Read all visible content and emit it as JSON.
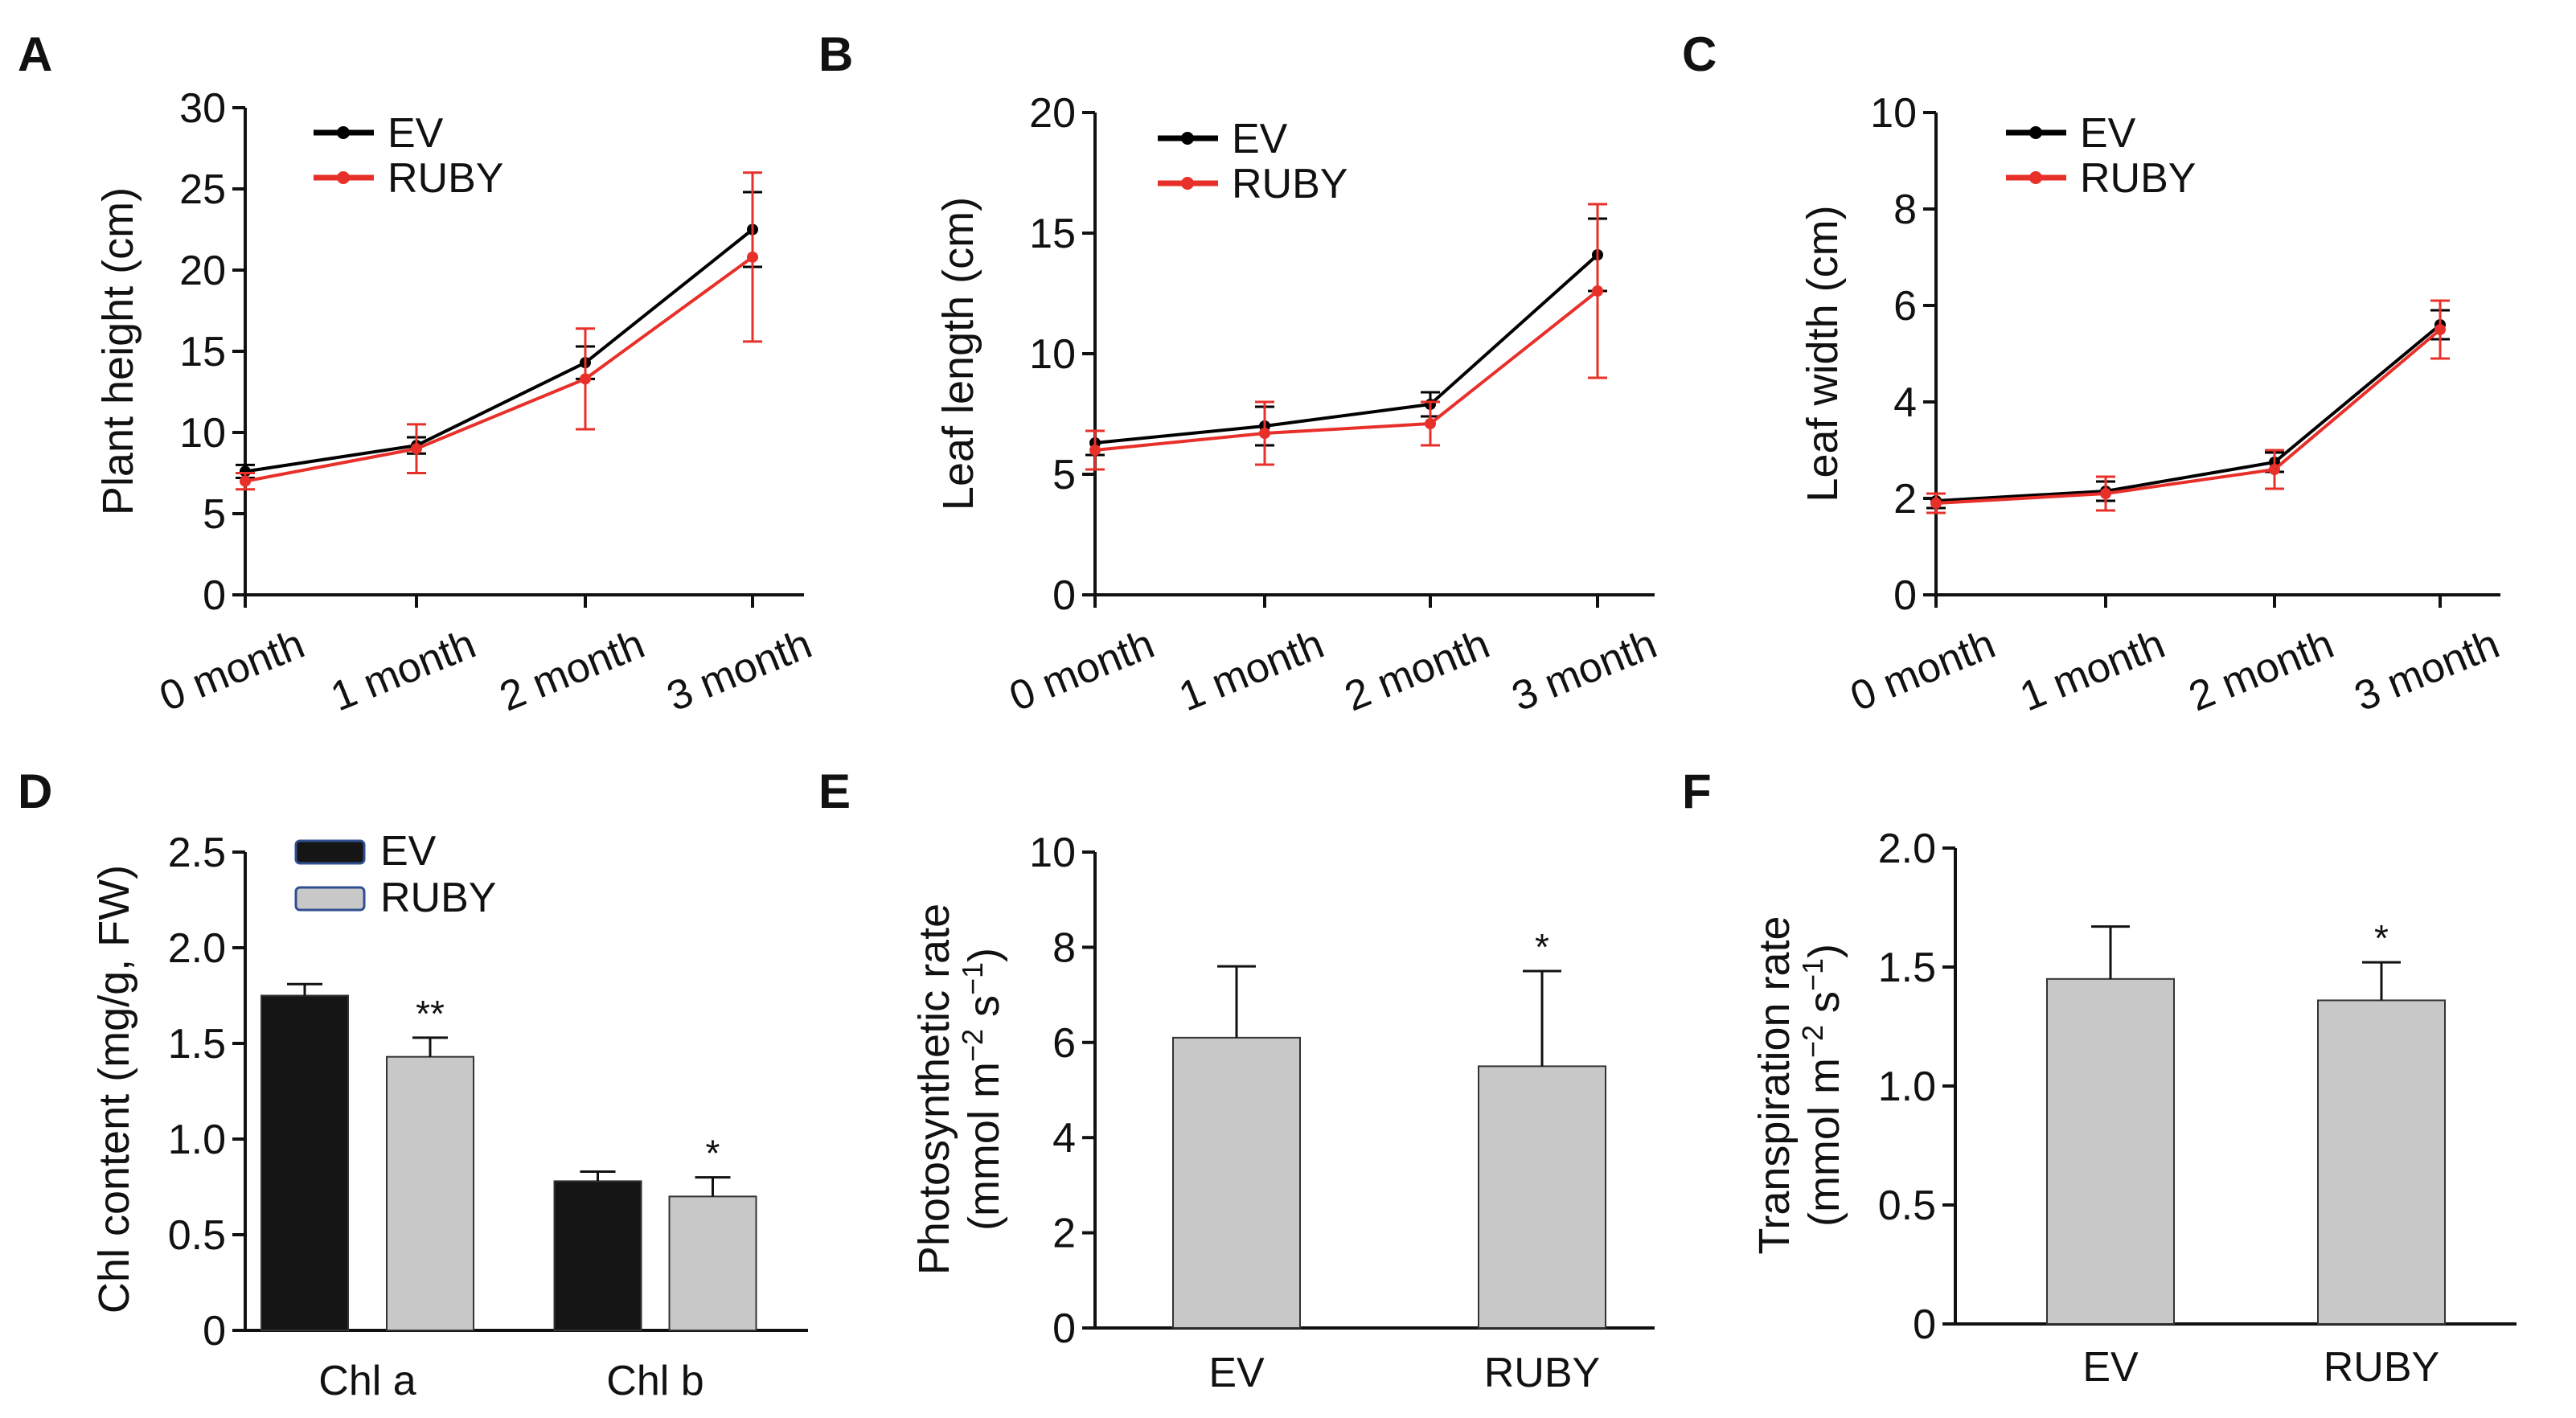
{
  "colors": {
    "ev_line": "#000000",
    "ruby_line": "#e8302a",
    "ev_bar": "#151515",
    "ruby_bar": "#c8c8c8",
    "bar_edge": "#333333"
  },
  "chart_data": [
    {
      "panel": "A",
      "type": "line",
      "ylabel": "Plant height (cm)",
      "ylim": [
        0,
        30
      ],
      "yticks": [
        "0",
        "5",
        "10",
        "15",
        "20",
        "25",
        "30"
      ],
      "x": [
        "0 month",
        "1 month",
        "2 month",
        "3 month"
      ],
      "legend": [
        "EV",
        "RUBY"
      ],
      "series": [
        {
          "name": "EV",
          "values": [
            7.6,
            9.2,
            14.3,
            22.5
          ],
          "errors": [
            0.4,
            0.5,
            1.0,
            2.3
          ]
        },
        {
          "name": "RUBY",
          "values": [
            7.0,
            9.0,
            13.3,
            20.8
          ],
          "errors": [
            0.5,
            1.5,
            3.1,
            5.2
          ]
        }
      ]
    },
    {
      "panel": "B",
      "type": "line",
      "ylabel": "Leaf length (cm)",
      "ylim": [
        0,
        20
      ],
      "yticks": [
        "0",
        "5",
        "10",
        "15",
        "20"
      ],
      "x": [
        "0 month",
        "1 month",
        "2 month",
        "3 month"
      ],
      "legend": [
        "EV",
        "RUBY"
      ],
      "series": [
        {
          "name": "EV",
          "values": [
            6.3,
            7.0,
            7.9,
            14.1
          ],
          "errors": [
            0.5,
            0.8,
            0.5,
            1.5
          ]
        },
        {
          "name": "RUBY",
          "values": [
            6.0,
            6.7,
            7.1,
            12.6
          ],
          "errors": [
            0.8,
            1.3,
            0.9,
            3.6
          ]
        }
      ]
    },
    {
      "panel": "C",
      "type": "line",
      "ylabel": "Leaf width (cm)",
      "ylim": [
        0,
        10
      ],
      "yticks": [
        "0",
        "2",
        "4",
        "6",
        "8",
        "10"
      ],
      "x": [
        "0 month",
        "1 month",
        "2 month",
        "3 month"
      ],
      "legend": [
        "EV",
        "RUBY"
      ],
      "series": [
        {
          "name": "EV",
          "values": [
            1.95,
            2.15,
            2.75,
            5.6
          ],
          "errors": [
            0.15,
            0.2,
            0.2,
            0.3
          ]
        },
        {
          "name": "RUBY",
          "values": [
            1.9,
            2.1,
            2.6,
            5.5
          ],
          "errors": [
            0.2,
            0.35,
            0.4,
            0.6
          ]
        }
      ]
    },
    {
      "panel": "D",
      "type": "bar",
      "ylabel": "Chl content (mg/g, FW)",
      "ylim": [
        0,
        2.5
      ],
      "yticks": [
        "0",
        "0.5",
        "1.0",
        "1.5",
        "2.0",
        "2.5"
      ],
      "categories": [
        "Chl a",
        "Chl b"
      ],
      "legend": [
        "EV",
        "RUBY"
      ],
      "series": [
        {
          "name": "EV",
          "values": [
            1.75,
            0.78
          ],
          "errors": [
            0.06,
            0.05
          ]
        },
        {
          "name": "RUBY",
          "values": [
            1.43,
            0.7
          ],
          "errors": [
            0.1,
            0.1
          ]
        }
      ],
      "annotations": [
        {
          "category": "Chl a",
          "text": "**"
        },
        {
          "category": "Chl b",
          "text": "*"
        }
      ]
    },
    {
      "panel": "E",
      "type": "bar",
      "ylabel": "Photosynthetic rate",
      "ylabel2_prefix": "(mmol m",
      "ylabel2_sup1": "−2",
      "ylabel2_mid": " s",
      "ylabel2_sup2": "−1",
      "ylabel2_suffix": ")",
      "ylim": [
        0,
        10
      ],
      "yticks": [
        "0",
        "2",
        "4",
        "6",
        "8",
        "10"
      ],
      "categories": [
        "EV",
        "RUBY"
      ],
      "values": [
        6.1,
        5.5
      ],
      "errors": [
        1.5,
        2.0
      ],
      "annotations": [
        {
          "category": "RUBY",
          "text": "*"
        }
      ]
    },
    {
      "panel": "F",
      "type": "bar",
      "ylabel": "Transpiration rate",
      "ylabel2_prefix": "(mmol m",
      "ylabel2_sup1": "−2",
      "ylabel2_mid": " s",
      "ylabel2_sup2": "−1",
      "ylabel2_suffix": ")",
      "ylim": [
        0,
        2.0
      ],
      "yticks": [
        "0",
        "0.5",
        "1.0",
        "1.5",
        "2.0"
      ],
      "categories": [
        "EV",
        "RUBY"
      ],
      "values": [
        1.45,
        1.36
      ],
      "errors": [
        0.22,
        0.16
      ],
      "annotations": [
        {
          "category": "RUBY",
          "text": "*"
        }
      ]
    }
  ]
}
